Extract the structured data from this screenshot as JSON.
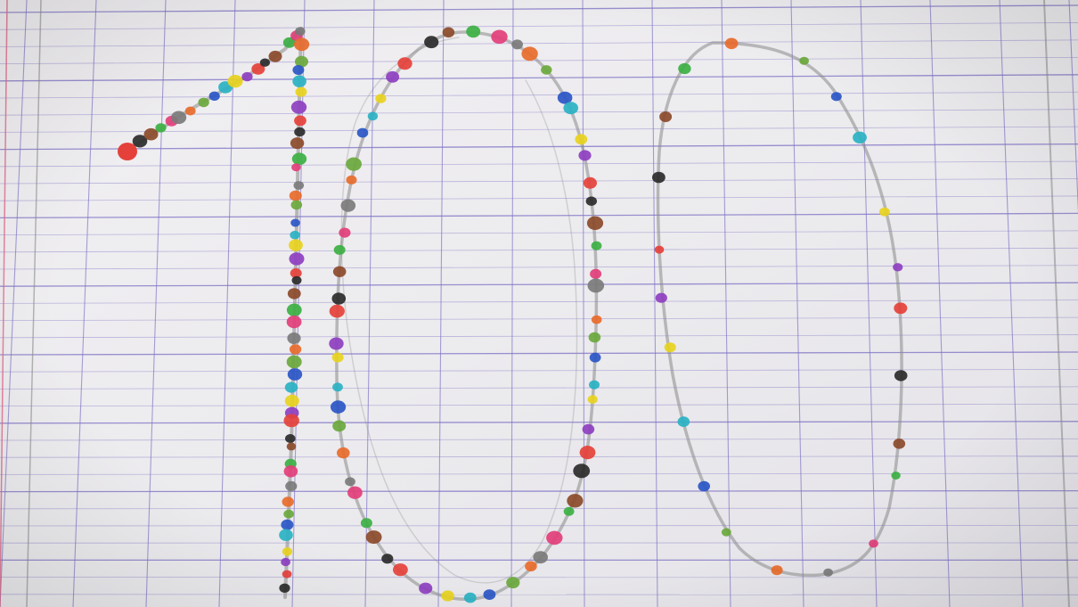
{
  "photo": {
    "subject": "number-100-dot-drawing",
    "paper_color": "#f1eff2",
    "grid_line_color": "#7b70c4",
    "margin_line_color": "#e06a8a",
    "pencil_color": "#8a8a8a"
  },
  "dot_palette": [
    "#e5413a",
    "#7b7b7b",
    "#e8d21e",
    "#3cb043",
    "#2a56c6",
    "#2b2b2b",
    "#e86b2b",
    "#8e3fc0",
    "#e23f7a",
    "#2ab2c3",
    "#8b4a2a",
    "#6aa83c"
  ]
}
